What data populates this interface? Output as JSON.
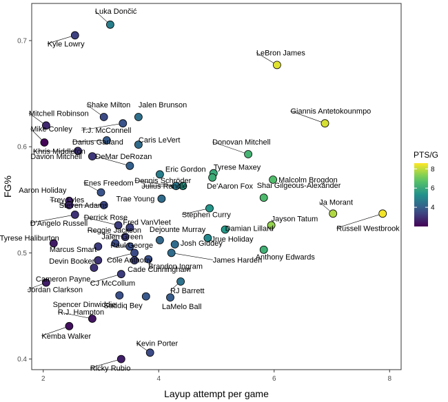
{
  "chart_data": {
    "type": "scatter",
    "title": "",
    "xlabel": "Layup attempt per game",
    "ylabel": "FG%",
    "xlim": [
      1.8,
      8.2
    ],
    "ylim": [
      0.39,
      0.735
    ],
    "xticks": [
      2,
      4,
      6,
      8
    ],
    "yticks": [
      0.4,
      0.5,
      0.6,
      0.7
    ],
    "ytick_labels": [
      "0.4",
      "0.5",
      "0.6",
      "0.7"
    ],
    "grid": false,
    "color_scale": {
      "name": "PTS/G",
      "min": 2,
      "max": 8.6,
      "ticks": [
        4,
        6,
        8
      ]
    },
    "points": [
      {
        "name": "Luka Dončić",
        "x": 3.16,
        "y": 0.715,
        "pts": 4.8
      },
      {
        "name": "Kyle Lowry",
        "x": 2.55,
        "y": 0.705,
        "pts": 3.3
      },
      {
        "name": "LeBron James",
        "x": 6.05,
        "y": 0.677,
        "pts": 8.3
      },
      {
        "name": "Giannis Antetokounmpo",
        "x": 6.88,
        "y": 0.622,
        "pts": 8.2
      },
      {
        "name": "Shake Milton",
        "x": 3.05,
        "y": 0.628,
        "pts": 3.5
      },
      {
        "name": "Jalen Brunson",
        "x": 3.65,
        "y": 0.628,
        "pts": 4.4
      },
      {
        "name": "Mitchell Robinson",
        "x": 2.05,
        "y": 0.62,
        "pts": 2.8
      },
      {
        "name": "T.J. McConnell",
        "x": 3.38,
        "y": 0.622,
        "pts": 3.7
      },
      {
        "name": "Mike Conley",
        "x": 2.02,
        "y": 0.604,
        "pts": 2.1
      },
      {
        "name": "Darius Garland",
        "x": 3.1,
        "y": 0.606,
        "pts": 3.9
      },
      {
        "name": "Caris LeVert",
        "x": 3.65,
        "y": 0.602,
        "pts": 4.3
      },
      {
        "name": "Khris Middleton",
        "x": 2.6,
        "y": 0.596,
        "pts": 3.0
      },
      {
        "name": "Davion Mitchell",
        "x": 2.85,
        "y": 0.591,
        "pts": 3.1
      },
      {
        "name": "DeMar DeRozan",
        "x": 3.5,
        "y": 0.582,
        "pts": 4.0
      },
      {
        "name": "Donovan Mitchell",
        "x": 5.55,
        "y": 0.593,
        "pts": 6.3
      },
      {
        "name": "Eric Gordon",
        "x": 4.02,
        "y": 0.574,
        "pts": 4.8
      },
      {
        "name": "Tyrese Maxey",
        "x": 4.95,
        "y": 0.575,
        "pts": 6.0
      },
      {
        "name": "Dennis Schröder",
        "x": 4.3,
        "y": 0.563,
        "pts": 4.6
      },
      {
        "name": "De'Aaron Fox",
        "x": 4.93,
        "y": 0.571,
        "pts": 6.1
      },
      {
        "name": "Malcolm Brogdon",
        "x": 5.98,
        "y": 0.569,
        "pts": 6.6
      },
      {
        "name": "Julius Randle",
        "x": 4.42,
        "y": 0.563,
        "pts": 5.5
      },
      {
        "name": "Enes Freedom",
        "x": 3.0,
        "y": 0.557,
        "pts": 3.7
      },
      {
        "name": "Aaron Holiday",
        "x": 2.45,
        "y": 0.549,
        "pts": 2.7
      },
      {
        "name": "Shai Gilgeous-Alexander",
        "x": 5.82,
        "y": 0.552,
        "pts": 6.5
      },
      {
        "name": "Trae Young",
        "x": 4.05,
        "y": 0.551,
        "pts": 4.3
      },
      {
        "name": "Steven Adams",
        "x": 3.05,
        "y": 0.545,
        "pts": 3.4
      },
      {
        "name": "Trey Lyles",
        "x": 2.45,
        "y": 0.545,
        "pts": 2.8
      },
      {
        "name": "Ja Morant",
        "x": 7.02,
        "y": 0.537,
        "pts": 7.8
      },
      {
        "name": "Russell Westbrook",
        "x": 7.88,
        "y": 0.537,
        "pts": 8.5
      },
      {
        "name": "Stephen Curry",
        "x": 4.88,
        "y": 0.542,
        "pts": 5.4
      },
      {
        "name": "Jayson Tatum",
        "x": 5.95,
        "y": 0.526,
        "pts": 7.5
      },
      {
        "name": "Damian Lillard",
        "x": 5.15,
        "y": 0.522,
        "pts": 5.5
      },
      {
        "name": "D'Angelo Russell",
        "x": 2.55,
        "y": 0.536,
        "pts": 3.0
      },
      {
        "name": "Derrick Rose",
        "x": 3.3,
        "y": 0.526,
        "pts": 3.2
      },
      {
        "name": "Fred VanVleet",
        "x": 3.5,
        "y": 0.524,
        "pts": 3.3
      },
      {
        "name": "Reggie Jackson",
        "x": 3.42,
        "y": 0.515,
        "pts": 3.2
      },
      {
        "name": "Dejounte Murray",
        "x": 4.02,
        "y": 0.512,
        "pts": 4.2
      },
      {
        "name": "Jrue Holiday",
        "x": 4.85,
        "y": 0.514,
        "pts": 5.1
      },
      {
        "name": "Tyrese Haliburton",
        "x": 2.18,
        "y": 0.509,
        "pts": 2.5
      },
      {
        "name": "Jalen Green",
        "x": 3.25,
        "y": 0.509,
        "pts": 3.5
      },
      {
        "name": "Paul George",
        "x": 3.5,
        "y": 0.506,
        "pts": 3.6
      },
      {
        "name": "Josh Giddey",
        "x": 4.28,
        "y": 0.508,
        "pts": 4.3
      },
      {
        "name": "Marcus Smart",
        "x": 2.95,
        "y": 0.506,
        "pts": 3.2
      },
      {
        "name": "James Harden",
        "x": 4.22,
        "y": 0.5,
        "pts": 4.3
      },
      {
        "name": "Anthony Edwards",
        "x": 5.82,
        "y": 0.503,
        "pts": 6.2
      },
      {
        "name": "Cole Anthony",
        "x": 3.58,
        "y": 0.5,
        "pts": 3.5
      },
      {
        "name": "Brandon Ingram",
        "x": 3.82,
        "y": 0.494,
        "pts": 3.6
      },
      {
        "name": "Devin Booker",
        "x": 2.95,
        "y": 0.493,
        "pts": 3.0
      },
      {
        "name": "Cade Cunningham",
        "x": 3.58,
        "y": 0.493,
        "pts": 3.3
      },
      {
        "name": "Cameron Payne",
        "x": 2.88,
        "y": 0.486,
        "pts": 3.0
      },
      {
        "name": "CJ McCollum",
        "x": 3.35,
        "y": 0.48,
        "pts": 3.2
      },
      {
        "name": "Jordan Clarkson",
        "x": 2.05,
        "y": 0.472,
        "pts": 2.6
      },
      {
        "name": "RJ Barrett",
        "x": 4.38,
        "y": 0.473,
        "pts": 4.5
      },
      {
        "name": "Spencer Dinwiddie",
        "x": 3.32,
        "y": 0.46,
        "pts": 3.6
      },
      {
        "name": "Saddiq Bey",
        "x": 3.78,
        "y": 0.459,
        "pts": 3.8
      },
      {
        "name": "LaMelo Ball",
        "x": 4.2,
        "y": 0.458,
        "pts": 3.9
      },
      {
        "name": "R.J. Hampton",
        "x": 2.85,
        "y": 0.438,
        "pts": 2.4
      },
      {
        "name": "Kemba Walker",
        "x": 2.45,
        "y": 0.431,
        "pts": 2.3
      },
      {
        "name": "Kevin Porter",
        "x": 3.85,
        "y": 0.406,
        "pts": 3.5
      },
      {
        "name": "Ricky Rubio",
        "x": 3.35,
        "y": 0.4,
        "pts": 2.6
      }
    ]
  }
}
